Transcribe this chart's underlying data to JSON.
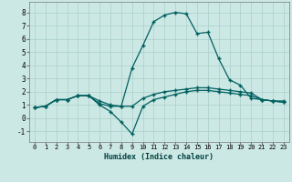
{
  "xlabel": "Humidex (Indice chaleur)",
  "ylabel": "",
  "bg_color": "#cce8e4",
  "grid_color": "#aacfca",
  "line_color": "#006060",
  "xlim": [
    -0.5,
    23.5
  ],
  "ylim": [
    -1.8,
    8.8
  ],
  "xticks": [
    0,
    1,
    2,
    3,
    4,
    5,
    6,
    7,
    8,
    9,
    10,
    11,
    12,
    13,
    14,
    15,
    16,
    17,
    18,
    19,
    20,
    21,
    22,
    23
  ],
  "yticks": [
    -1,
    0,
    1,
    2,
    3,
    4,
    5,
    6,
    7,
    8
  ],
  "series": [
    [
      0.8,
      0.9,
      1.4,
      1.4,
      1.7,
      1.7,
      1.1,
      0.9,
      0.9,
      3.8,
      5.5,
      7.3,
      7.8,
      8.0,
      7.9,
      6.4,
      6.5,
      4.5,
      2.9,
      2.5,
      1.5,
      1.4,
      1.3,
      1.3
    ],
    [
      0.8,
      0.9,
      1.4,
      1.4,
      1.7,
      1.7,
      1.3,
      1.0,
      0.9,
      0.9,
      1.5,
      1.8,
      2.0,
      2.1,
      2.2,
      2.3,
      2.3,
      2.2,
      2.1,
      2.0,
      1.9,
      1.4,
      1.3,
      1.2
    ],
    [
      0.8,
      0.9,
      1.4,
      1.4,
      1.7,
      1.7,
      1.0,
      0.5,
      -0.3,
      -1.2,
      0.9,
      1.4,
      1.6,
      1.8,
      2.0,
      2.1,
      2.1,
      2.0,
      1.9,
      1.8,
      1.7,
      1.4,
      1.3,
      1.2
    ]
  ]
}
